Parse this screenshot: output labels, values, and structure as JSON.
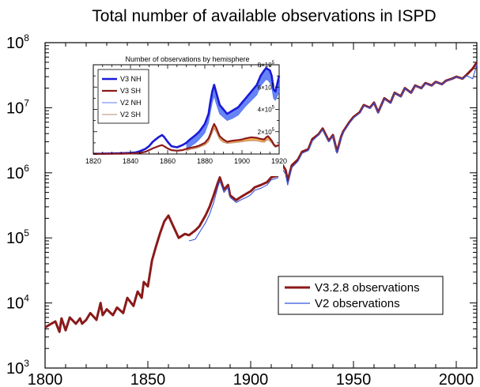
{
  "chart_data": [
    {
      "type": "line",
      "title": "Total number of available observations in ISPD",
      "xlabel": "",
      "ylabel": "",
      "xlim": [
        1800,
        2010
      ],
      "ylim": [
        1000,
        100000000
      ],
      "yscale": "log",
      "xticks": [
        "1800",
        "1850",
        "1900",
        "1950",
        "2000"
      ],
      "yticks": [
        {
          "base": "10",
          "exp": "3",
          "value": 1000
        },
        {
          "base": "10",
          "exp": "4",
          "value": 10000
        },
        {
          "base": "10",
          "exp": "5",
          "value": 100000
        },
        {
          "base": "10",
          "exp": "6",
          "value": 1000000
        },
        {
          "base": "10",
          "exp": "7",
          "value": 10000000
        },
        {
          "base": "10",
          "exp": "8",
          "value": 100000000
        }
      ],
      "legend_position": "bottom-right",
      "series": [
        {
          "name": "V3.2.8 observations",
          "color": "#8b1a1a",
          "x": [
            1800,
            1803,
            1805,
            1807,
            1808,
            1810,
            1812,
            1815,
            1817,
            1818,
            1820,
            1822,
            1825,
            1827,
            1828,
            1830,
            1833,
            1835,
            1838,
            1840,
            1843,
            1845,
            1847,
            1848,
            1850,
            1852,
            1854,
            1856,
            1858,
            1860,
            1862,
            1865,
            1868,
            1870,
            1873,
            1875,
            1878,
            1880,
            1882,
            1884,
            1885,
            1887,
            1889,
            1890,
            1893,
            1895,
            1898,
            1900,
            1902,
            1905,
            1908,
            1910,
            1913,
            1915,
            1917,
            1918,
            1920,
            1923,
            1925,
            1928,
            1930,
            1933,
            1935,
            1938,
            1940,
            1942,
            1944,
            1945,
            1948,
            1950,
            1953,
            1955,
            1958,
            1960,
            1962,
            1965,
            1968,
            1970,
            1973,
            1975,
            1978,
            1980,
            1983,
            1985,
            1988,
            1990,
            1993,
            1995,
            1998,
            2000,
            2003,
            2005,
            2008,
            2010
          ],
          "values": [
            4200,
            4800,
            5200,
            3600,
            5800,
            3800,
            6000,
            4800,
            5800,
            4800,
            5500,
            7000,
            5500,
            10000,
            6500,
            8000,
            6500,
            8500,
            7000,
            12000,
            9000,
            15000,
            12000,
            21000,
            18000,
            45000,
            75000,
            120000,
            180000,
            220000,
            160000,
            100000,
            115000,
            110000,
            130000,
            150000,
            220000,
            300000,
            450000,
            700000,
            850000,
            550000,
            650000,
            450000,
            380000,
            420000,
            480000,
            520000,
            600000,
            650000,
            720000,
            850000,
            900000,
            1400000,
            1100000,
            750000,
            1300000,
            1600000,
            2100000,
            2300000,
            3300000,
            3900000,
            4800000,
            3100000,
            3800000,
            2100000,
            3600000,
            4300000,
            6000000,
            7200000,
            8500000,
            11000000,
            10000000,
            12000000,
            8500000,
            14000000,
            12000000,
            17000000,
            15000000,
            20000000,
            17000000,
            22000000,
            20000000,
            24000000,
            22000000,
            25000000,
            23000000,
            26000000,
            28000000,
            30000000,
            28000000,
            32000000,
            40000000,
            50000000
          ]
        },
        {
          "name": "V2 observations",
          "color": "#3355dd",
          "x": [
            1870,
            1873,
            1875,
            1878,
            1880,
            1882,
            1884,
            1885,
            1887,
            1889,
            1890,
            1893,
            1895,
            1898,
            1900,
            1902,
            1905,
            1908,
            1910,
            1913,
            1915,
            1917,
            1918,
            1920,
            1923,
            1925,
            1928,
            1930,
            1933,
            1935,
            1938,
            1940,
            1942,
            1944,
            1945,
            1948,
            1950,
            1953,
            1955,
            1958,
            1960,
            1962,
            1965,
            1968,
            1970,
            1973,
            1975,
            1978,
            1980,
            1983,
            1985,
            1988,
            1990,
            1993,
            1995,
            1998,
            2000,
            2003,
            2005,
            2008,
            2010
          ],
          "values": [
            90000,
            95000,
            120000,
            170000,
            230000,
            350000,
            600000,
            750000,
            500000,
            600000,
            420000,
            350000,
            380000,
            420000,
            460000,
            540000,
            580000,
            650000,
            780000,
            830000,
            1200000,
            950000,
            650000,
            1200000,
            1500000,
            2000000,
            2200000,
            3100000,
            3800000,
            4600000,
            3000000,
            3700000,
            2000000,
            3500000,
            4200000,
            5800000,
            7000000,
            8300000,
            10800000,
            9800000,
            11800000,
            8300000,
            13800000,
            11800000,
            16800000,
            14800000,
            19800000,
            16800000,
            21800000,
            19800000,
            23800000,
            21800000,
            24800000,
            22800000,
            25800000,
            27800000,
            29800000,
            27800000,
            31000000,
            28000000,
            46000000
          ]
        }
      ]
    },
    {
      "type": "area",
      "title": "Number of observations by hemisphere",
      "xlabel": "",
      "ylabel": "",
      "xlim": [
        1820,
        1920
      ],
      "ylim": [
        0,
        800000
      ],
      "xticks": [
        "1820",
        "1840",
        "1860",
        "1880",
        "1900",
        "1920"
      ],
      "yticks": [
        {
          "base": "2×10",
          "exp": "5",
          "value": 200000
        },
        {
          "base": "4×10",
          "exp": "5",
          "value": 400000
        },
        {
          "base": "6×10",
          "exp": "5",
          "value": 600000
        },
        {
          "base": "8×10",
          "exp": "5",
          "value": 800000
        }
      ],
      "legend_position": "top-left",
      "x": [
        1820,
        1825,
        1830,
        1835,
        1840,
        1843,
        1845,
        1848,
        1850,
        1852,
        1855,
        1857,
        1858,
        1860,
        1862,
        1865,
        1868,
        1870,
        1872,
        1875,
        1877,
        1880,
        1882,
        1883,
        1884,
        1885,
        1886,
        1888,
        1890,
        1892,
        1895,
        1898,
        1900,
        1902,
        1905,
        1908,
        1910,
        1912,
        1913,
        1914,
        1915,
        1916,
        1917,
        1918,
        1920
      ],
      "series": [
        {
          "name": "V3 NH",
          "color": "#1a1ad6",
          "values": [
            2000,
            3000,
            5000,
            7000,
            10000,
            15000,
            25000,
            45000,
            70000,
            110000,
            150000,
            170000,
            155000,
            110000,
            70000,
            60000,
            80000,
            100000,
            130000,
            170000,
            200000,
            270000,
            360000,
            470000,
            560000,
            620000,
            560000,
            440000,
            400000,
            360000,
            390000,
            420000,
            460000,
            500000,
            560000,
            620000,
            700000,
            750000,
            770000,
            760000,
            750000,
            700000,
            580000,
            560000,
            700000
          ]
        },
        {
          "name": "V3 SH",
          "color": "#8b1a1a",
          "values": [
            1000,
            1500,
            2000,
            3000,
            4000,
            6000,
            10000,
            20000,
            35000,
            50000,
            70000,
            80000,
            70000,
            50000,
            35000,
            30000,
            35000,
            45000,
            55000,
            65000,
            75000,
            100000,
            140000,
            180000,
            230000,
            270000,
            240000,
            160000,
            130000,
            110000,
            120000,
            125000,
            130000,
            140000,
            150000,
            145000,
            135000,
            130000,
            150000,
            160000,
            140000,
            120000,
            90000,
            70000,
            80000
          ]
        },
        {
          "name": "V2 NH",
          "color": "#5a7ef0",
          "values": [
            null,
            null,
            null,
            null,
            null,
            null,
            null,
            null,
            null,
            null,
            null,
            null,
            null,
            null,
            null,
            null,
            null,
            40000,
            65000,
            100000,
            130000,
            190000,
            280000,
            380000,
            460000,
            520000,
            460000,
            360000,
            330000,
            300000,
            320000,
            350000,
            390000,
            430000,
            480000,
            530000,
            610000,
            650000,
            670000,
            660000,
            640000,
            600000,
            500000,
            480000,
            560000
          ]
        },
        {
          "name": "V2 SH",
          "color": "#b98a7a",
          "values": [
            null,
            null,
            null,
            null,
            null,
            null,
            null,
            null,
            null,
            null,
            null,
            null,
            null,
            null,
            null,
            null,
            null,
            30000,
            40000,
            50000,
            60000,
            80000,
            110000,
            150000,
            190000,
            230000,
            200000,
            130000,
            105000,
            95000,
            100000,
            105000,
            110000,
            115000,
            120000,
            118000,
            110000,
            105000,
            120000,
            130000,
            115000,
            100000,
            75000,
            60000,
            70000
          ]
        }
      ]
    }
  ]
}
